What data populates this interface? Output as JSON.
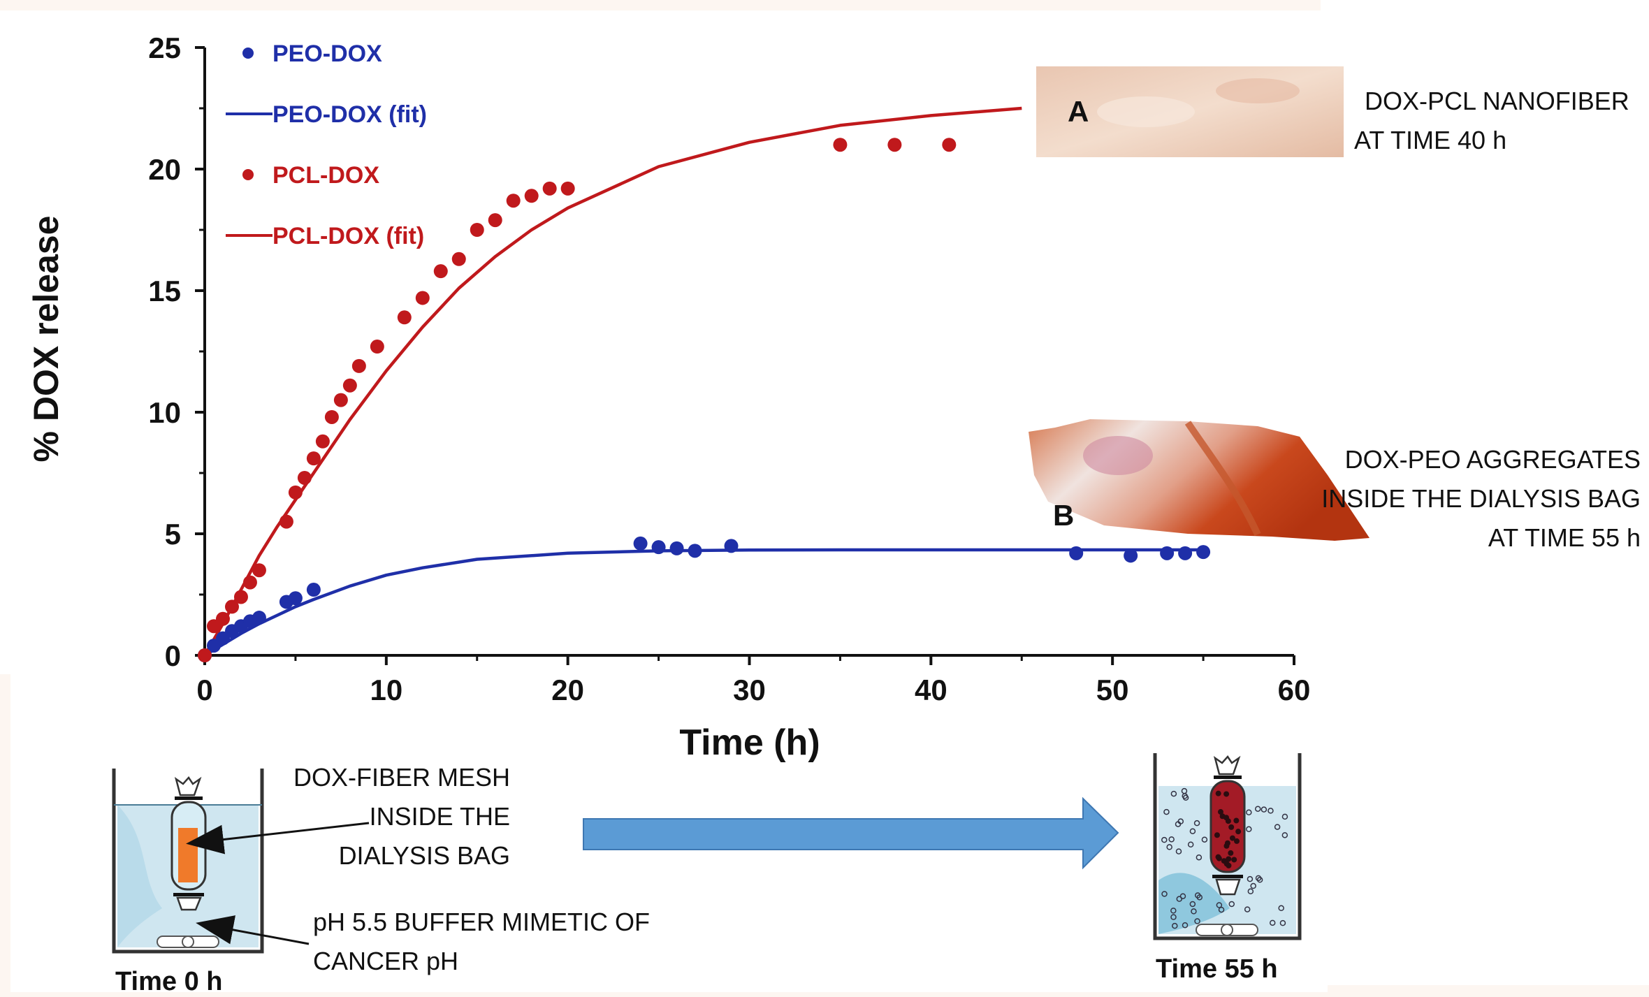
{
  "chart_data": {
    "type": "scatter",
    "xlabel": "Time (h)",
    "ylabel": "% DOX release",
    "xlim": [
      0,
      60
    ],
    "ylim": [
      0,
      25
    ],
    "xticks": [
      0,
      10,
      20,
      30,
      40,
      50,
      60
    ],
    "yticks": [
      0,
      5,
      10,
      15,
      20,
      25
    ],
    "grid": false,
    "legend_position": "top-left",
    "series": [
      {
        "name": "PEO-DOX",
        "kind": "points",
        "color": "#1f2fa8",
        "x": [
          0,
          0.5,
          1,
          1.5,
          2,
          2.5,
          3,
          4.5,
          5,
          6,
          24,
          25,
          26,
          27,
          29,
          48,
          51,
          53,
          54,
          55
        ],
        "y": [
          0,
          0.4,
          0.7,
          1.0,
          1.2,
          1.4,
          1.55,
          2.2,
          2.35,
          2.7,
          4.6,
          4.45,
          4.4,
          4.3,
          4.5,
          4.2,
          4.1,
          4.2,
          4.2,
          4.25
        ]
      },
      {
        "name": "PEO-DOX (fit)",
        "kind": "line",
        "color": "#1f2fa8",
        "x": [
          0,
          1,
          2,
          3,
          4,
          5,
          6,
          8,
          10,
          12,
          15,
          20,
          25,
          30,
          35,
          40,
          45,
          50,
          55
        ],
        "y": [
          0,
          0.45,
          0.9,
          1.3,
          1.65,
          2.0,
          2.3,
          2.85,
          3.3,
          3.6,
          3.95,
          4.2,
          4.3,
          4.33,
          4.34,
          4.34,
          4.34,
          4.34,
          4.34
        ]
      },
      {
        "name": "PCL-DOX",
        "kind": "points",
        "color": "#c0191c",
        "x": [
          0,
          0.5,
          1,
          1.5,
          2,
          2.5,
          3,
          4.5,
          5,
          5.5,
          6,
          6.5,
          7,
          7.5,
          8,
          8.5,
          9.5,
          11,
          12,
          13,
          14,
          15,
          16,
          17,
          18,
          19,
          20,
          35,
          38,
          41
        ],
        "y": [
          0,
          1.2,
          1.5,
          2.0,
          2.4,
          3.0,
          3.5,
          5.5,
          6.7,
          7.3,
          8.1,
          8.8,
          9.8,
          10.5,
          11.1,
          11.9,
          12.7,
          13.9,
          14.7,
          15.8,
          16.3,
          17.5,
          17.9,
          18.7,
          18.9,
          19.2,
          19.2,
          21.0,
          21.0,
          21.0
        ]
      },
      {
        "name": "PCL-DOX (fit)",
        "kind": "line",
        "color": "#c0191c",
        "x": [
          0,
          1,
          2,
          3,
          4,
          5,
          6,
          7,
          8,
          10,
          12,
          14,
          16,
          18,
          20,
          25,
          30,
          35,
          40,
          45
        ],
        "y": [
          0,
          1.3,
          2.7,
          4.1,
          5.3,
          6.4,
          7.5,
          8.6,
          9.7,
          11.7,
          13.5,
          15.1,
          16.4,
          17.5,
          18.4,
          20.1,
          21.1,
          21.8,
          22.2,
          22.5
        ]
      }
    ]
  },
  "annotations": {
    "photo_a_letter": "A",
    "photo_a_caption": "DOX-PCL NANOFIBER AT TIME 40 h",
    "photo_b_letter": "B",
    "photo_b_caption": "DOX-PEO AGGREGATES INSIDE THE DIALYSIS BAG AT TIME 55 h"
  },
  "schematic": {
    "mesh_label": "DOX-FIBER MESH INSIDE THE DIALYSIS BAG",
    "buffer_label": "pH 5.5 BUFFER MIMETIC OF CANCER pH",
    "time_start": "Time 0 h",
    "time_end": "Time 55 h",
    "water_color": "#cfe6f0",
    "mesh_color": "#f07a2a",
    "bag_fill_color": "#a31b26",
    "arrow_color": "#5b9bd5"
  }
}
